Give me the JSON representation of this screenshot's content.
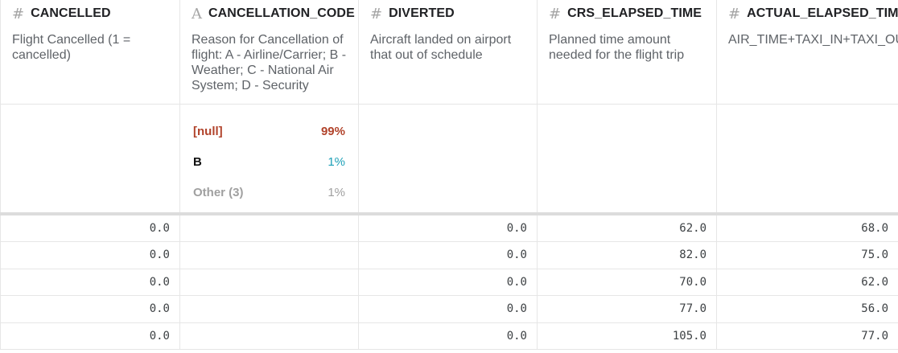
{
  "columns": [
    {
      "type_icon": "#",
      "name": "CANCELLED",
      "description": "Flight Cancelled (1 = cancelled)"
    },
    {
      "type_icon": "A",
      "name": "CANCELLATION_CODE",
      "description": "Reason for Cancellation of flight: A - Airline/Carrier; B - Weather; C - National Air System; D - Security"
    },
    {
      "type_icon": "#",
      "name": "DIVERTED",
      "description": "Aircraft landed on airport that out of schedule"
    },
    {
      "type_icon": "#",
      "name": "CRS_ELAPSED_TIME",
      "description": "Planned time amount needed for the flight trip"
    },
    {
      "type_icon": "#",
      "name": "ACTUAL_ELAPSED_TIM",
      "description": "AIR_TIME+TAXI_IN+TAXI_OUT"
    }
  ],
  "cancellation_stats": [
    {
      "label": "[null]",
      "pct": "99%"
    },
    {
      "label": "B",
      "pct": "1%"
    },
    {
      "label": "Other (3)",
      "pct": "1%"
    }
  ],
  "rows": [
    [
      "0.0",
      "",
      "0.0",
      "62.0",
      "68.0"
    ],
    [
      "0.0",
      "",
      "0.0",
      "82.0",
      "75.0"
    ],
    [
      "0.0",
      "",
      "0.0",
      "70.0",
      "62.0"
    ],
    [
      "0.0",
      "",
      "0.0",
      "77.0",
      "56.0"
    ],
    [
      "0.0",
      "",
      "0.0",
      "105.0",
      "77.0"
    ]
  ]
}
